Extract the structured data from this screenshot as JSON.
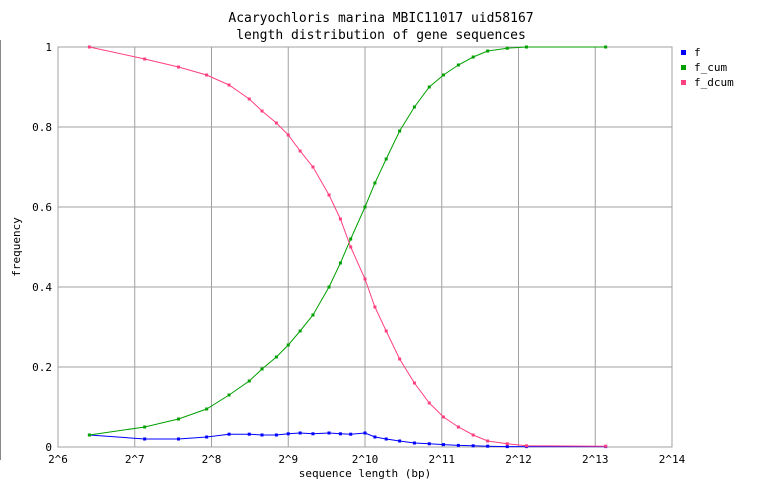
{
  "chart_data": {
    "type": "line",
    "title": "Acaryochloris marina MBIC11017 uid58167",
    "subtitle": "length distribution of gene sequences",
    "x_label": "sequence length (bp)",
    "y_label": "frequency",
    "x_scale": "log2",
    "grid": true,
    "legend": "right",
    "x": [
      85,
      140,
      190,
      245,
      300,
      360,
      404,
      460,
      512,
      570,
      640,
      740,
      820,
      900,
      1024,
      1120,
      1240,
      1400,
      1600,
      1830,
      2080,
      2380,
      2720,
      3100,
      3700,
      4400,
      9000
    ],
    "series": [
      {
        "name": "f",
        "color": "#0000ff",
        "values": [
          0.03,
          0.02,
          0.02,
          0.025,
          0.032,
          0.032,
          0.03,
          0.03,
          0.033,
          0.035,
          0.033,
          0.035,
          0.033,
          0.032,
          0.035,
          0.025,
          0.02,
          0.015,
          0.01,
          0.008,
          0.006,
          0.004,
          0.003,
          0.002,
          0.001,
          0.001,
          0.001
        ]
      },
      {
        "name": "f_cum",
        "color": "#00a000",
        "values": [
          0.03,
          0.05,
          0.07,
          0.095,
          0.13,
          0.165,
          0.195,
          0.225,
          0.255,
          0.29,
          0.33,
          0.4,
          0.46,
          0.52,
          0.6,
          0.66,
          0.72,
          0.79,
          0.85,
          0.9,
          0.93,
          0.955,
          0.975,
          0.99,
          0.997,
          1,
          1
        ]
      },
      {
        "name": "f_dcum",
        "color": "#ff4080",
        "values": [
          1,
          0.97,
          0.95,
          0.93,
          0.905,
          0.87,
          0.84,
          0.81,
          0.78,
          0.74,
          0.7,
          0.63,
          0.57,
          0.5,
          0.42,
          0.35,
          0.29,
          0.22,
          0.16,
          0.11,
          0.075,
          0.05,
          0.03,
          0.015,
          0.008,
          0.003,
          0.002
        ]
      }
    ],
    "xlim": [
      64,
      16384
    ],
    "xticks": [
      {
        "value": 64,
        "label": "2^6"
      },
      {
        "value": 128,
        "label": "2^7"
      },
      {
        "value": 256,
        "label": "2^8"
      },
      {
        "value": 512,
        "label": "2^9"
      },
      {
        "value": 1024,
        "label": "2^10"
      },
      {
        "value": 2048,
        "label": "2^11"
      },
      {
        "value": 4096,
        "label": "2^12"
      },
      {
        "value": 8192,
        "label": "2^13"
      },
      {
        "value": 16384,
        "label": "2^14"
      }
    ],
    "ylim": [
      0,
      1
    ],
    "yticks": [
      0,
      0.2,
      0.4,
      0.6,
      0.8,
      1
    ]
  }
}
